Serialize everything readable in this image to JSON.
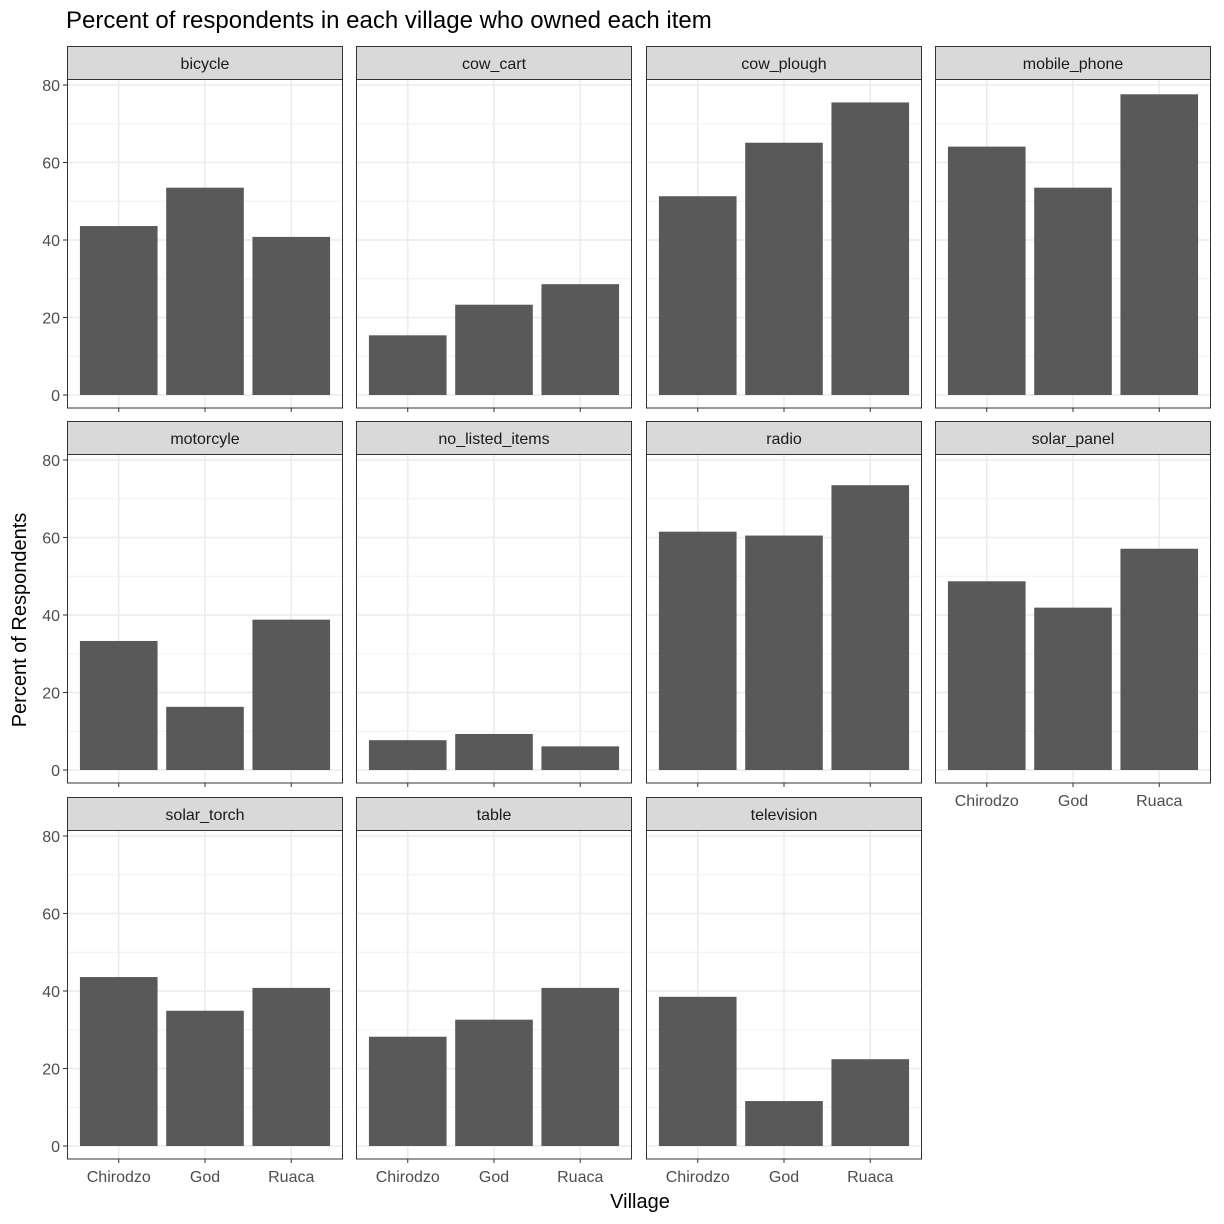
{
  "chart_data": {
    "type": "bar",
    "title": "Percent of respondents in each village who owned each item",
    "xlabel": "Village",
    "ylabel": "Percent of Respondents",
    "ylim": [
      0,
      80
    ],
    "yticks": [
      "0",
      "20",
      "40",
      "60",
      "80"
    ],
    "categories": [
      "Chirodzo",
      "God",
      "Ruaca"
    ],
    "grid": true,
    "bar_color": "#595959",
    "strip_color": "#d9d9d9",
    "facets": [
      {
        "name": "bicycle",
        "values": [
          43.6,
          53.5,
          40.8
        ]
      },
      {
        "name": "cow_cart",
        "values": [
          15.4,
          23.3,
          28.6
        ]
      },
      {
        "name": "cow_plough",
        "values": [
          51.3,
          65.1,
          75.5
        ]
      },
      {
        "name": "mobile_phone",
        "values": [
          64.1,
          53.5,
          77.6
        ]
      },
      {
        "name": "motorcyle",
        "values": [
          33.3,
          16.3,
          38.8
        ]
      },
      {
        "name": "no_listed_items",
        "values": [
          7.7,
          9.3,
          6.1
        ]
      },
      {
        "name": "radio",
        "values": [
          61.5,
          60.5,
          73.5
        ]
      },
      {
        "name": "solar_panel",
        "values": [
          48.7,
          41.9,
          57.1
        ]
      },
      {
        "name": "solar_torch",
        "values": [
          43.6,
          34.9,
          40.8
        ]
      },
      {
        "name": "table",
        "values": [
          28.2,
          32.6,
          40.8
        ]
      },
      {
        "name": "television",
        "values": [
          38.5,
          11.6,
          22.4
        ]
      }
    ]
  }
}
